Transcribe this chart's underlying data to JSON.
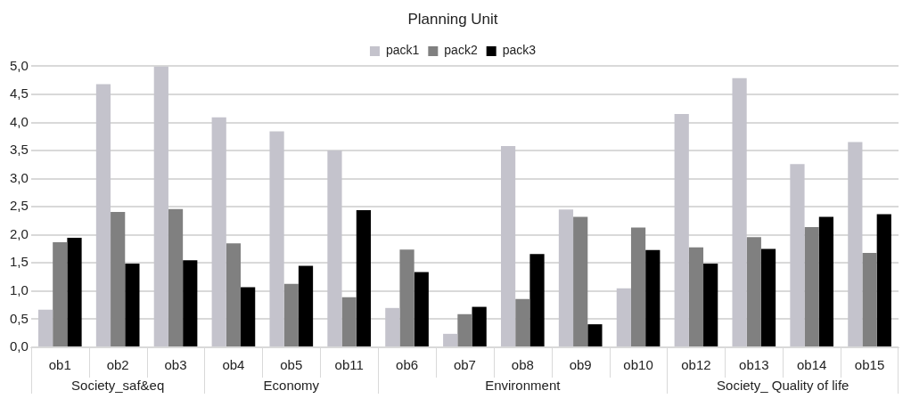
{
  "chart_data": {
    "type": "bar",
    "title": "Planning Unit",
    "categories": [
      "ob1",
      "ob2",
      "ob3",
      "ob4",
      "ob5",
      "ob11",
      "ob6",
      "ob7",
      "ob8",
      "ob9",
      "ob10",
      "ob12",
      "ob13",
      "ob14",
      "ob15"
    ],
    "series": [
      {
        "name": "pack1",
        "color": "#c4c3cc",
        "values": [
          0.67,
          4.68,
          5.0,
          4.09,
          3.84,
          3.5,
          0.7,
          0.24,
          3.58,
          2.45,
          1.05,
          4.15,
          4.79,
          3.26,
          3.65
        ]
      },
      {
        "name": "pack2",
        "color": "#808080",
        "values": [
          1.87,
          2.41,
          2.46,
          1.85,
          1.13,
          0.89,
          1.74,
          0.59,
          0.86,
          2.32,
          2.13,
          1.78,
          1.96,
          2.14,
          1.68
        ]
      },
      {
        "name": "pack3",
        "color": "#000000",
        "values": [
          1.95,
          1.49,
          1.55,
          1.07,
          1.45,
          2.44,
          1.34,
          0.72,
          1.66,
          0.41,
          1.73,
          1.49,
          1.75,
          2.32,
          2.37
        ]
      }
    ],
    "annotations": [
      "Society_saf&eq",
      "Economy",
      "Environment",
      "Society_ Quality of life"
    ],
    "ylim": [
      0,
      5
    ],
    "yticks": [
      {
        "value": 0,
        "label": "0,0"
      },
      {
        "value": 0.5,
        "label": "0,5"
      },
      {
        "value": 1,
        "label": "1,0"
      },
      {
        "value": 1.5,
        "label": "1,5"
      },
      {
        "value": 2,
        "label": "2,0"
      },
      {
        "value": 2.5,
        "label": "2,5"
      },
      {
        "value": 3,
        "label": "3,0"
      },
      {
        "value": 3.5,
        "label": "3,5"
      },
      {
        "value": 4,
        "label": "4,0"
      },
      {
        "value": 4.5,
        "label": "4,5"
      },
      {
        "value": 5,
        "label": "5,0"
      }
    ],
    "grid": "y",
    "legend": "top"
  }
}
